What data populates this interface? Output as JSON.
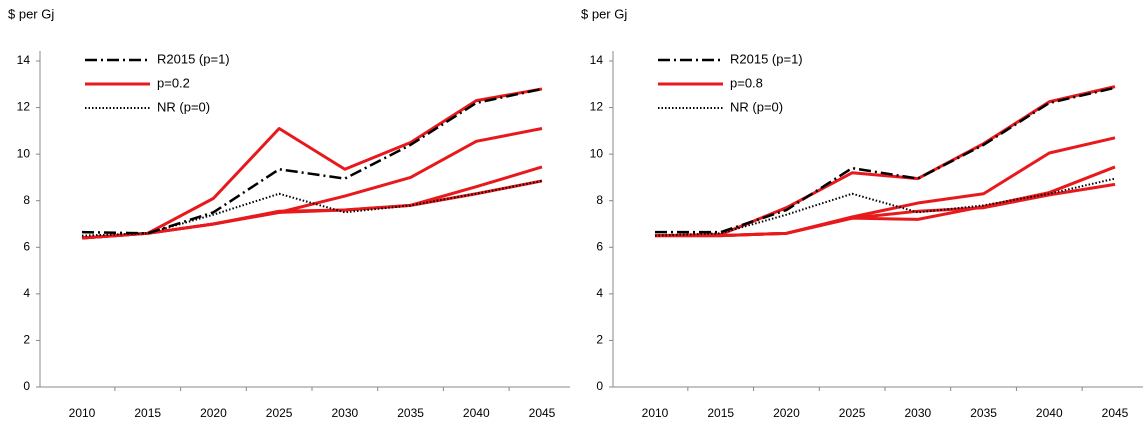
{
  "chart_data": [
    {
      "type": "line",
      "y_label": "$ per Gj",
      "categories": [
        "2010",
        "2015",
        "2020",
        "2025",
        "2030",
        "2035",
        "2040",
        "2045"
      ],
      "ylim": [
        0,
        14
      ],
      "yticks": [
        0,
        2,
        4,
        6,
        8,
        10,
        12,
        14
      ],
      "legend": "top-left",
      "series": [
        {
          "name": "R2015 (p=1)",
          "color": "#000000",
          "style": "dashdot",
          "values": [
            6.65,
            6.6,
            7.5,
            9.35,
            8.95,
            10.4,
            12.2,
            12.8
          ]
        },
        {
          "name": "p=0.2",
          "color": "#e8191c",
          "style": "solid",
          "values": [
            6.4,
            6.6,
            8.1,
            11.1,
            9.35,
            10.5,
            12.3,
            12.8
          ]
        },
        {
          "name": "NR (p=0)",
          "color": "#000000",
          "style": "dotted",
          "values": [
            6.5,
            6.6,
            7.4,
            8.3,
            7.5,
            7.8,
            8.3,
            8.85
          ]
        },
        {
          "color": "#e8191c",
          "style": "solid",
          "values": [
            6.4,
            6.6,
            7.0,
            7.5,
            8.2,
            9.0,
            10.55,
            11.1
          ]
        },
        {
          "color": "#e8191c",
          "style": "solid",
          "values": [
            6.4,
            6.6,
            7.0,
            7.55,
            7.6,
            7.8,
            8.6,
            9.45
          ]
        },
        {
          "color": "#e8191c",
          "style": "solid",
          "values": [
            6.4,
            6.6,
            7.0,
            7.5,
            7.6,
            7.8,
            8.3,
            8.85
          ]
        }
      ]
    },
    {
      "type": "line",
      "y_label": "$ per Gj",
      "categories": [
        "2010",
        "2015",
        "2020",
        "2025",
        "2030",
        "2035",
        "2040",
        "2045"
      ],
      "ylim": [
        0,
        14
      ],
      "yticks": [
        0,
        2,
        4,
        6,
        8,
        10,
        12,
        14
      ],
      "legend": "top-left",
      "series": [
        {
          "name": "R2015 (p=1)",
          "color": "#000000",
          "style": "dashdot",
          "values": [
            6.65,
            6.65,
            7.6,
            9.4,
            8.95,
            10.4,
            12.2,
            12.85
          ]
        },
        {
          "name": "p=0.8",
          "color": "#e8191c",
          "style": "solid",
          "values": [
            6.5,
            6.55,
            7.7,
            9.2,
            8.95,
            10.45,
            12.25,
            12.9
          ]
        },
        {
          "name": "NR (p=0)",
          "color": "#000000",
          "style": "dotted",
          "values": [
            6.5,
            6.6,
            7.4,
            8.3,
            7.5,
            7.8,
            8.3,
            8.95
          ]
        },
        {
          "color": "#e8191c",
          "style": "solid",
          "values": [
            6.5,
            6.5,
            6.6,
            7.3,
            7.9,
            8.3,
            10.05,
            10.7
          ]
        },
        {
          "color": "#e8191c",
          "style": "solid",
          "values": [
            6.5,
            6.5,
            6.6,
            7.25,
            7.2,
            7.75,
            8.35,
            9.45
          ]
        },
        {
          "color": "#e8191c",
          "style": "solid",
          "values": [
            6.5,
            6.5,
            6.6,
            7.25,
            7.55,
            7.7,
            8.25,
            8.7
          ]
        }
      ]
    }
  ]
}
